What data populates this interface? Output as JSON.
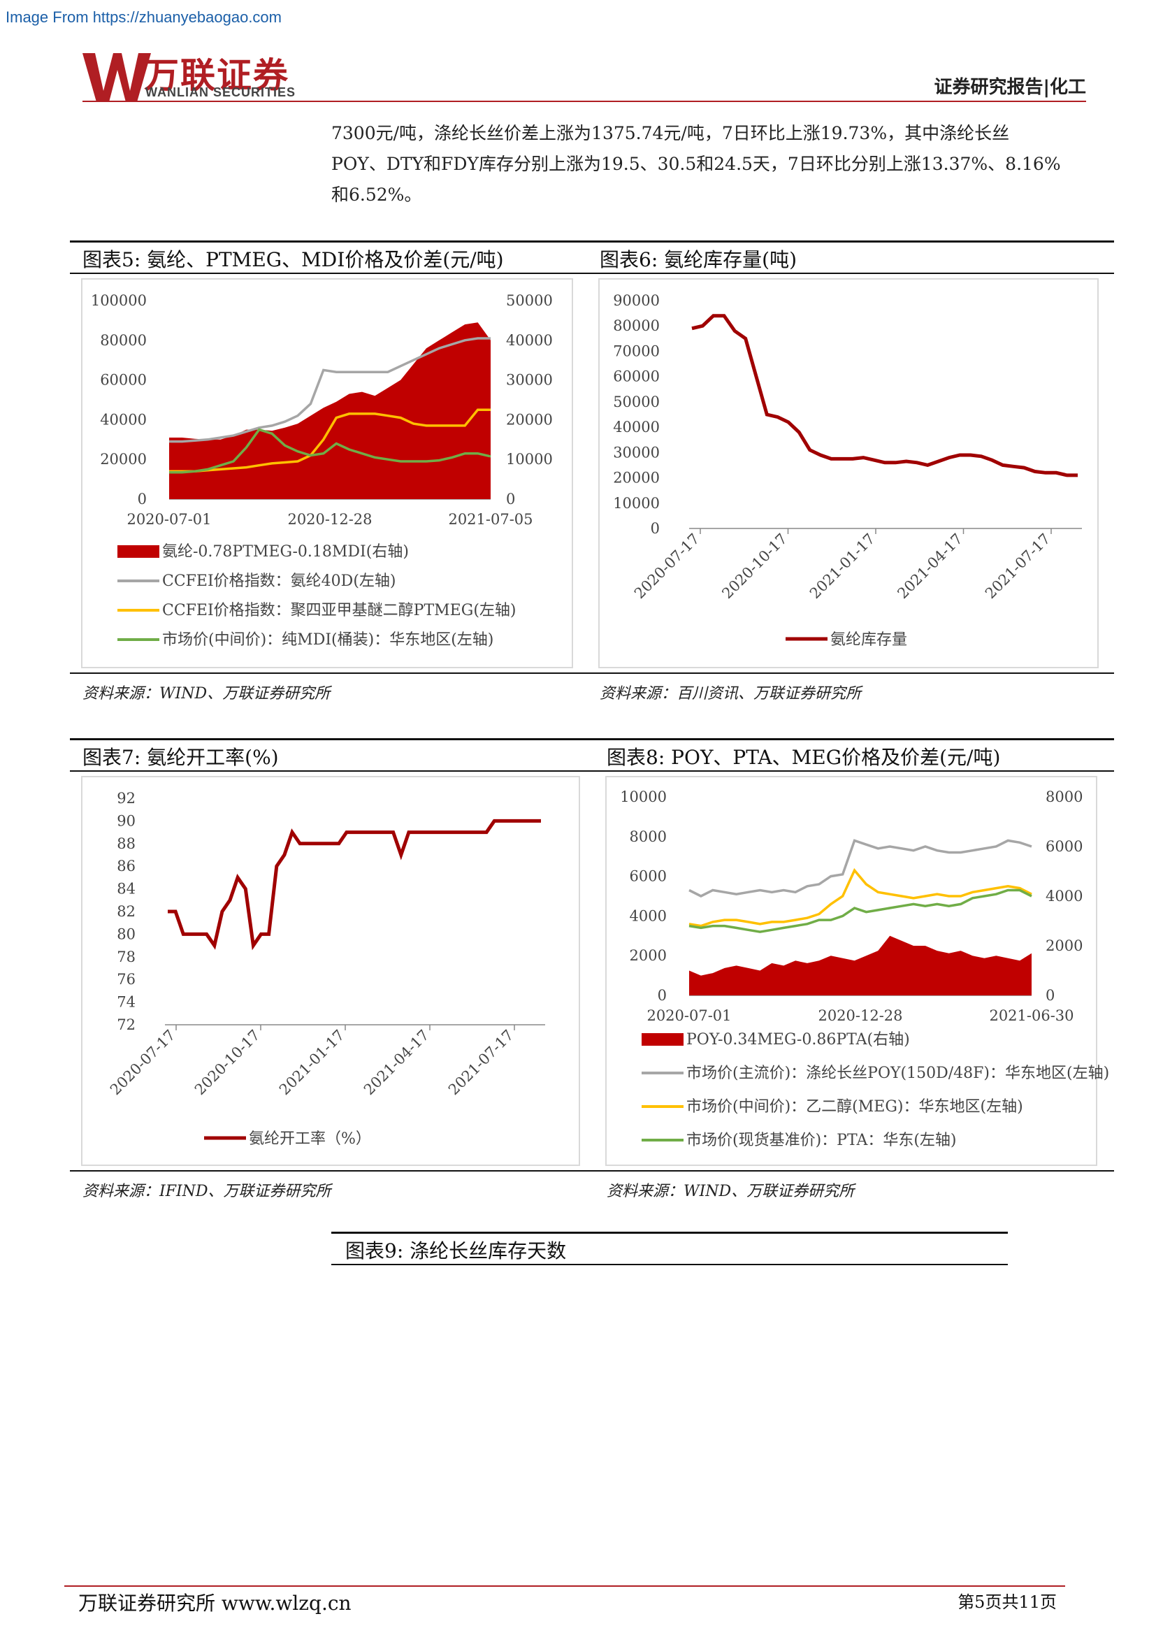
{
  "watermark": "Image From https://zhuanyebaogao.com",
  "header": {
    "logo_cn": "万联证券",
    "logo_en": "WANLIAN SECURITIES",
    "right": "证券研究报告|化工"
  },
  "body_text": {
    "line1": "7300元/吨，涤纶长丝价差上涨为1375.74元/吨，7日环比上涨19.73%，其中涤纶长丝",
    "line2": "POY、DTY和FDY库存分别上涨为19.5、30.5和24.5天，7日环比分别上涨13.37%、8.16%",
    "line3": "和6.52%。"
  },
  "figures": {
    "fig5": {
      "title": "图表5:  氨纶、PTMEG、MDI价格及价差(元/吨)",
      "source": "资料来源：WIND、万联证券研究所"
    },
    "fig6": {
      "title": "图表6:  氨纶库存量(吨)",
      "source": "资料来源：百川资讯、万联证券研究所"
    },
    "fig7": {
      "title": "图表7:  氨纶开工率(%)",
      "source": "资料来源：IFIND、万联证券研究所"
    },
    "fig8": {
      "title": "图表8:  POY、PTA、MEG价格及价差(元/吨)",
      "source": "资料来源：WIND、万联证券研究所"
    },
    "fig9": {
      "title": "图表9:  涤纶长丝库存天数"
    }
  },
  "chart_data": [
    {
      "id": "fig5",
      "type": "area",
      "left_ticks": [
        "100000",
        "80000",
        "60000",
        "40000",
        "20000",
        "0"
      ],
      "right_ticks": [
        "50000",
        "40000",
        "30000",
        "20000",
        "10000",
        "0"
      ],
      "x_ticks": [
        "2020-07-01",
        "2020-12-28",
        "2021-07-05"
      ],
      "ylim_left": [
        0,
        100000
      ],
      "ylim_right": [
        0,
        50000
      ],
      "series": [
        {
          "name": "氨纶-0.78PTMEG-0.18MDI(右轴)",
          "axis": "right",
          "kind": "area",
          "color": "#c00000",
          "values": [
            15500,
            15500,
            15200,
            15000,
            15000,
            16000,
            17500,
            17500,
            17200,
            18000,
            19000,
            21000,
            23000,
            24500,
            26500,
            27000,
            26000,
            28000,
            30000,
            34000,
            38000,
            40000,
            42000,
            44000,
            44500,
            40000
          ]
        },
        {
          "name": "CCFEI价格指数：氨纶40D(左轴)",
          "axis": "left",
          "kind": "line",
          "color": "#a6a6a6",
          "values": [
            29000,
            29000,
            29500,
            30000,
            31000,
            32000,
            34000,
            36000,
            37000,
            39000,
            42000,
            48000,
            65000,
            64000,
            64000,
            64000,
            64000,
            64000,
            67000,
            70000,
            73000,
            76000,
            78000,
            80000,
            81000,
            81000
          ]
        },
        {
          "name": "CCFEI价格指数：聚四亚甲基醚二醇PTMEG(左轴)",
          "axis": "left",
          "kind": "line",
          "color": "#ffc000",
          "values": [
            14000,
            14000,
            14000,
            14500,
            15000,
            15500,
            16000,
            17000,
            18000,
            18500,
            19000,
            22000,
            30000,
            41000,
            43000,
            43000,
            43000,
            42000,
            41000,
            38000,
            37000,
            37000,
            37000,
            37000,
            45000,
            45000
          ]
        },
        {
          "name": "市场价(中间价)：纯MDI(桶装)：华东地区(左轴)",
          "axis": "left",
          "kind": "line",
          "color": "#70ad47",
          "values": [
            13500,
            13500,
            14000,
            15000,
            17000,
            19000,
            26000,
            35000,
            33000,
            27000,
            24000,
            22000,
            23000,
            28000,
            25000,
            23000,
            21000,
            20000,
            19000,
            19000,
            19000,
            19500,
            21000,
            23000,
            23000,
            21500
          ]
        }
      ]
    },
    {
      "id": "fig6",
      "type": "line",
      "y_ticks": [
        "90000",
        "80000",
        "70000",
        "60000",
        "50000",
        "40000",
        "30000",
        "20000",
        "10000",
        "0"
      ],
      "x_ticks": [
        "2020-07-17",
        "2020-10-17",
        "2021-01-17",
        "2021-04-17",
        "2021-07-17"
      ],
      "ylim": [
        0,
        90000
      ],
      "series": [
        {
          "name": "氨纶库存量",
          "color": "#a00000",
          "values": [
            79000,
            80000,
            84000,
            84000,
            78000,
            75000,
            60000,
            45000,
            44000,
            42000,
            38000,
            31000,
            29000,
            27500,
            27500,
            27500,
            28000,
            27000,
            26000,
            26000,
            26500,
            26000,
            25000,
            26500,
            28000,
            29000,
            29000,
            28500,
            27000,
            25000,
            24500,
            24000,
            22500,
            22000,
            22000,
            21000,
            21000
          ]
        }
      ]
    },
    {
      "id": "fig7",
      "type": "line",
      "y_ticks": [
        "92",
        "90",
        "88",
        "86",
        "84",
        "82",
        "80",
        "78",
        "76",
        "74",
        "72"
      ],
      "x_ticks": [
        "2020-07-17",
        "2020-10-17",
        "2021-01-17",
        "2021-04-17",
        "2021-07-17"
      ],
      "ylim": [
        72,
        92
      ],
      "series": [
        {
          "name": "氨纶开工率（%）",
          "color": "#a00000",
          "values": [
            82,
            82,
            80,
            80,
            80,
            80,
            79,
            82,
            83,
            85,
            84,
            79,
            80,
            80,
            86,
            87,
            89,
            88,
            88,
            88,
            88,
            88,
            88,
            89,
            89,
            89,
            89,
            89,
            89,
            89,
            87,
            89,
            89,
            89,
            89,
            89,
            89,
            89,
            89,
            89,
            89,
            89,
            90,
            90,
            90,
            90,
            90,
            90,
            90
          ]
        }
      ]
    },
    {
      "id": "fig8",
      "type": "area",
      "left_ticks": [
        "10000",
        "8000",
        "6000",
        "4000",
        "2000",
        "0"
      ],
      "right_ticks": [
        "8000",
        "6000",
        "4000",
        "2000",
        "0"
      ],
      "x_ticks": [
        "2020-07-01",
        "2020-12-28",
        "2021-06-30"
      ],
      "ylim_left": [
        0,
        10000
      ],
      "ylim_right": [
        0,
        8000
      ],
      "series": [
        {
          "name": "POY-0.34MEG-0.86PTA(右轴)",
          "axis": "right",
          "kind": "area",
          "color": "#c00000",
          "values": [
            1000,
            800,
            900,
            1100,
            1200,
            1100,
            1000,
            1300,
            1200,
            1400,
            1300,
            1400,
            1600,
            1500,
            1400,
            1600,
            1800,
            2400,
            2200,
            2000,
            2000,
            1800,
            1700,
            1800,
            1600,
            1500,
            1600,
            1500,
            1400,
            1700
          ]
        },
        {
          "name": "市场价(主流价)：涤纶长丝POY(150D/48F)：华东地区(左轴)",
          "axis": "left",
          "kind": "line",
          "color": "#a6a6a6",
          "values": [
            5300,
            5000,
            5300,
            5200,
            5100,
            5200,
            5300,
            5200,
            5300,
            5200,
            5500,
            5600,
            6000,
            6100,
            7800,
            7600,
            7400,
            7500,
            7400,
            7300,
            7500,
            7300,
            7200,
            7200,
            7300,
            7400,
            7500,
            7800,
            7700,
            7500
          ]
        },
        {
          "name": "市场价(中间价)：乙二醇(MEG)：华东地区(左轴)",
          "axis": "left",
          "kind": "line",
          "color": "#ffc000",
          "values": [
            3600,
            3500,
            3700,
            3800,
            3800,
            3700,
            3600,
            3700,
            3700,
            3800,
            3900,
            4100,
            4600,
            5000,
            6300,
            5600,
            5200,
            5100,
            5000,
            4900,
            5000,
            5100,
            5000,
            5000,
            5200,
            5300,
            5400,
            5500,
            5400,
            5100
          ]
        },
        {
          "name": "市场价(现货基准价)：PTA：华东(左轴)",
          "axis": "left",
          "kind": "line",
          "color": "#70ad47",
          "values": [
            3500,
            3400,
            3500,
            3500,
            3400,
            3300,
            3200,
            3300,
            3400,
            3500,
            3600,
            3800,
            3800,
            4000,
            4400,
            4200,
            4300,
            4400,
            4500,
            4600,
            4500,
            4600,
            4500,
            4600,
            4900,
            5000,
            5100,
            5300,
            5300,
            5000
          ]
        }
      ]
    }
  ],
  "footer": {
    "left": "万联证券研究所 www.wlzq.cn",
    "right": "第5页共11页"
  }
}
